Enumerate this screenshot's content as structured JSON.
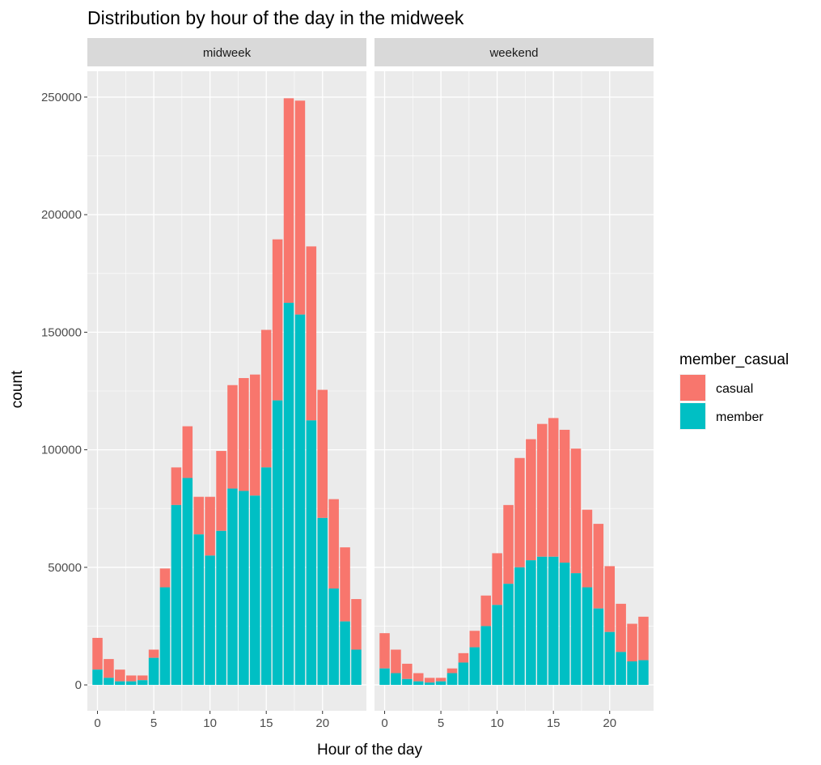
{
  "chart_data": {
    "type": "bar",
    "subtype": "stacked, faceted",
    "title": "Distribution by hour of the day in the midweek",
    "xlabel": "Hour of the day",
    "ylabel": "count",
    "x_ticks": [
      0,
      5,
      10,
      15,
      20
    ],
    "y_ticks": [
      0,
      50000,
      100000,
      150000,
      200000,
      250000
    ],
    "ylim": [
      -11000,
      261000
    ],
    "xlim": [
      -0.9,
      23.9
    ],
    "grid": true,
    "legend": {
      "title": "member_casual",
      "position": "right",
      "entries": [
        {
          "name": "casual",
          "color": "#F8766D"
        },
        {
          "name": "member",
          "color": "#00BFC4"
        }
      ]
    },
    "facets": [
      {
        "name": "midweek",
        "hours": [
          0,
          1,
          2,
          3,
          4,
          5,
          6,
          7,
          8,
          9,
          10,
          11,
          12,
          13,
          14,
          15,
          16,
          17,
          18,
          19,
          20,
          21,
          22,
          23
        ],
        "series": [
          {
            "name": "member",
            "color": "#00BFC4",
            "values": [
              6500,
              3000,
              1500,
              1500,
              2000,
              11500,
              41500,
              76500,
              88000,
              64000,
              55000,
              65500,
              83500,
              82500,
              80500,
              92500,
              121000,
              162500,
              157500,
              112500,
              71000,
              41000,
              27000,
              15000
            ]
          },
          {
            "name": "casual",
            "color": "#F8766D",
            "values": [
              13500,
              8000,
              5000,
              2500,
              2000,
              3500,
              8000,
              16000,
              22000,
              16000,
              25000,
              34000,
              44000,
              48000,
              51500,
              58500,
              68500,
              87000,
              91000,
              74000,
              54500,
              38000,
              31500,
              21500
            ]
          }
        ]
      },
      {
        "name": "weekend",
        "hours": [
          0,
          1,
          2,
          3,
          4,
          5,
          6,
          7,
          8,
          9,
          10,
          11,
          12,
          13,
          14,
          15,
          16,
          17,
          18,
          19,
          20,
          21,
          22,
          23
        ],
        "series": [
          {
            "name": "member",
            "color": "#00BFC4",
            "values": [
              7000,
              5000,
              2500,
              1500,
              1000,
              1500,
              5000,
              9500,
              16000,
              25000,
              34000,
              43000,
              50000,
              53000,
              54500,
              54500,
              52000,
              47500,
              41500,
              32500,
              22500,
              14000,
              10000,
              10500
            ]
          },
          {
            "name": "casual",
            "color": "#F8766D",
            "values": [
              15000,
              10000,
              6500,
              3500,
              2000,
              1500,
              2000,
              4000,
              7000,
              13000,
              22000,
              33500,
              46500,
              51500,
              56500,
              59000,
              56500,
              53000,
              33000,
              36000,
              28000,
              20500,
              16000,
              18500
            ]
          }
        ]
      }
    ]
  }
}
